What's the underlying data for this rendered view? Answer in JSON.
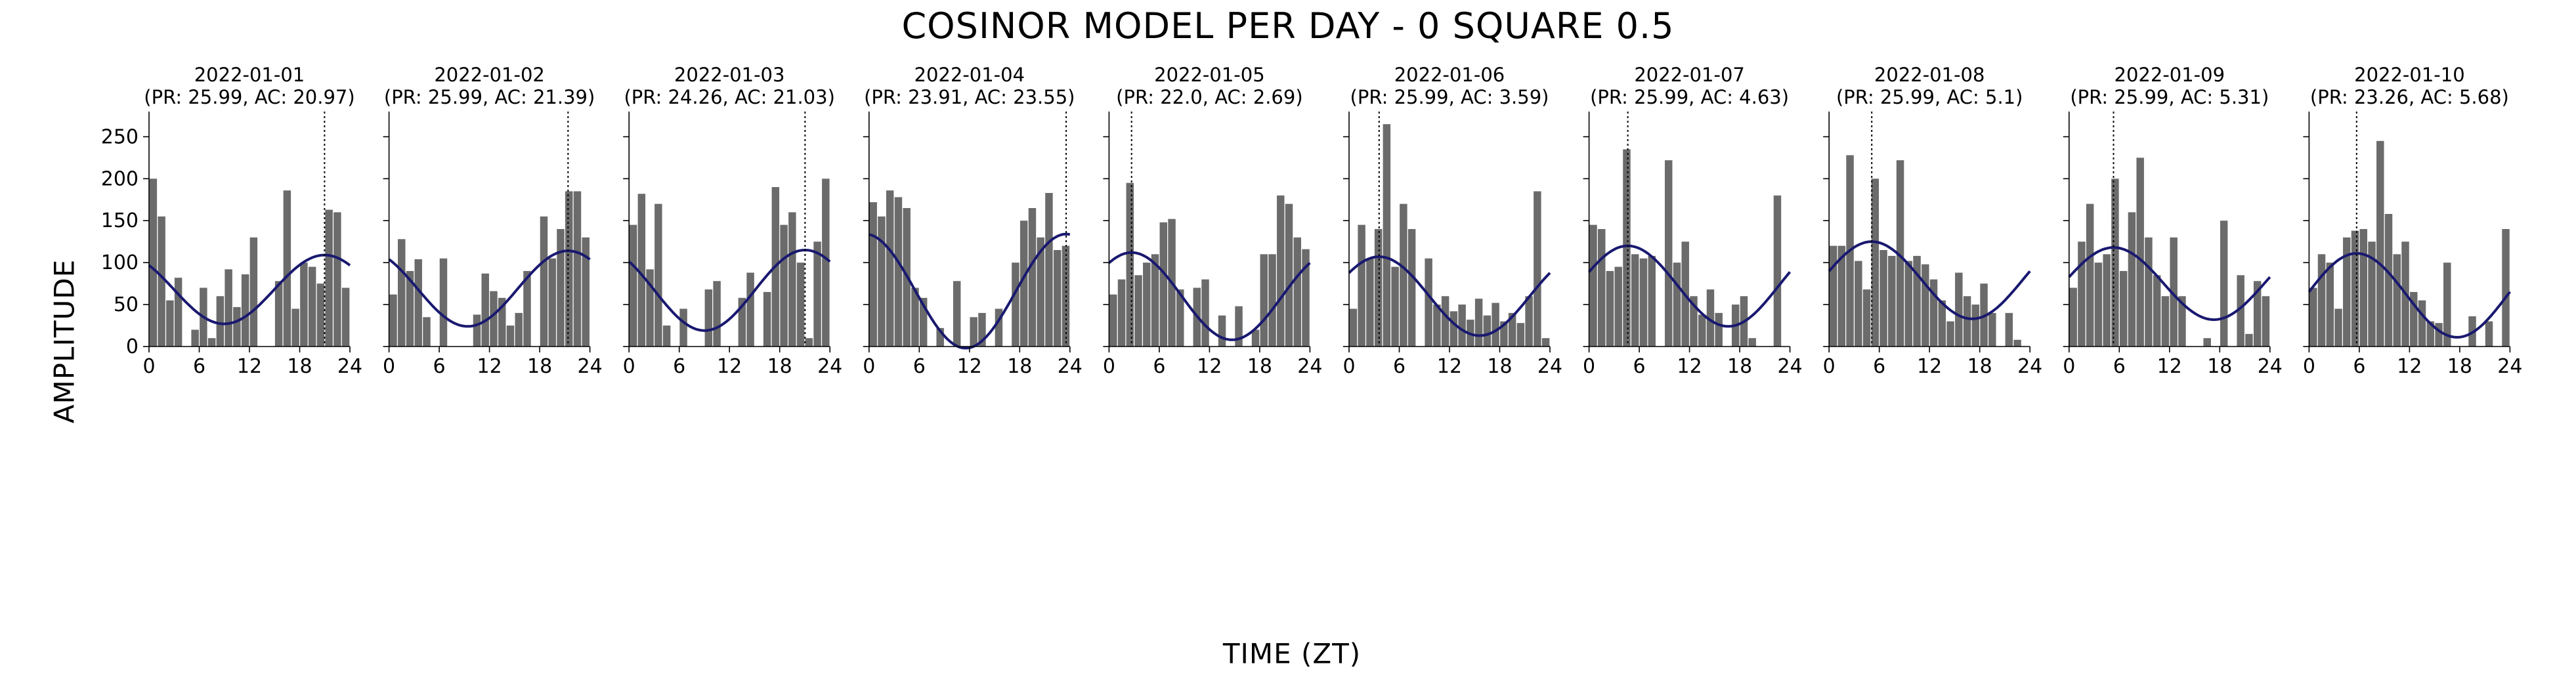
{
  "figure": {
    "title": "COSINOR MODEL PER DAY - 0 SQUARE 0.5",
    "xlabel": "TIME (ZT)",
    "ylabel": "AMPLITUDE"
  },
  "colors": {
    "bar": "#6b6b6b",
    "fit": "#191970",
    "acrophase_line": "#000000"
  },
  "chart_data": {
    "type": "bar",
    "xticks": [
      0,
      6,
      12,
      18,
      24
    ],
    "yticks": [
      0,
      50,
      100,
      150,
      200,
      250
    ],
    "xlim": [
      0,
      24
    ],
    "ylim": [
      0,
      280
    ],
    "bin_width_hours": 1,
    "panels": [
      {
        "date": "2022-01-01",
        "subtitle": "(PR: 25.99, AC: 20.97)",
        "acrophase": 20.97,
        "mesor": 68,
        "amplitude": 41,
        "values": [
          200,
          155,
          55,
          82,
          0,
          20,
          70,
          10,
          60,
          92,
          47,
          86,
          130,
          0,
          0,
          78,
          186,
          45,
          100,
          95,
          75,
          163,
          160,
          70
        ]
      },
      {
        "date": "2022-01-02",
        "subtitle": "(PR: 25.99, AC: 21.39)",
        "acrophase": 21.39,
        "mesor": 69,
        "amplitude": 45,
        "values": [
          62,
          128,
          90,
          104,
          35,
          0,
          105,
          0,
          0,
          0,
          38,
          87,
          66,
          58,
          25,
          40,
          90,
          0,
          155,
          105,
          140,
          185,
          185,
          130
        ]
      },
      {
        "date": "2022-01-03",
        "subtitle": "(PR: 24.26, AC: 21.03)",
        "acrophase": 21.03,
        "mesor": 67,
        "amplitude": 48,
        "values": [
          145,
          182,
          92,
          170,
          25,
          0,
          45,
          0,
          0,
          68,
          78,
          0,
          0,
          58,
          88,
          0,
          65,
          190,
          145,
          160,
          100,
          10,
          125,
          200
        ]
      },
      {
        "date": "2022-01-04",
        "subtitle": "(PR: 23.91, AC: 23.55)",
        "acrophase": 23.55,
        "mesor": 66,
        "amplitude": 68,
        "values": [
          172,
          155,
          186,
          178,
          165,
          70,
          58,
          0,
          22,
          0,
          78,
          0,
          35,
          40,
          0,
          45,
          0,
          100,
          150,
          165,
          130,
          183,
          115,
          120
        ]
      },
      {
        "date": "2022-01-05",
        "subtitle": "(PR: 22.0, AC: 2.69)",
        "acrophase": 2.69,
        "mesor": 60,
        "amplitude": 52,
        "values": [
          62,
          80,
          195,
          85,
          100,
          110,
          148,
          152,
          68,
          0,
          70,
          80,
          0,
          37,
          0,
          48,
          0,
          20,
          110,
          110,
          180,
          170,
          130,
          116
        ]
      },
      {
        "date": "2022-01-06",
        "subtitle": "(PR: 25.99, AC: 3.59)",
        "acrophase": 3.59,
        "mesor": 60,
        "amplitude": 47,
        "values": [
          45,
          145,
          105,
          140,
          265,
          95,
          170,
          140,
          0,
          105,
          50,
          60,
          42,
          50,
          32,
          57,
          37,
          52,
          30,
          40,
          28,
          60,
          185,
          10
        ]
      },
      {
        "date": "2022-01-07",
        "subtitle": "(PR: 25.99, AC: 4.63)",
        "acrophase": 4.63,
        "mesor": 72,
        "amplitude": 48,
        "values": [
          145,
          140,
          90,
          95,
          235,
          110,
          105,
          108,
          0,
          222,
          100,
          125,
          60,
          38,
          68,
          40,
          0,
          50,
          60,
          10,
          0,
          0,
          180,
          0
        ]
      },
      {
        "date": "2022-01-08",
        "subtitle": "(PR: 25.99, AC: 5.1)",
        "acrophase": 5.1,
        "mesor": 79,
        "amplitude": 46,
        "values": [
          120,
          120,
          228,
          102,
          68,
          200,
          115,
          108,
          222,
          102,
          108,
          98,
          80,
          55,
          30,
          88,
          60,
          50,
          75,
          40,
          0,
          40,
          8,
          0
        ]
      },
      {
        "date": "2022-01-09",
        "subtitle": "(PR: 25.99, AC: 5.31)",
        "acrophase": 5.31,
        "mesor": 75,
        "amplitude": 43,
        "values": [
          70,
          125,
          170,
          100,
          110,
          200,
          90,
          160,
          225,
          130,
          85,
          60,
          130,
          60,
          0,
          0,
          10,
          0,
          150,
          0,
          85,
          15,
          78,
          60
        ]
      },
      {
        "date": "2022-01-10",
        "subtitle": "(PR: 23.26, AC: 5.68)",
        "acrophase": 5.68,
        "mesor": 61,
        "amplitude": 50,
        "values": [
          70,
          110,
          100,
          45,
          130,
          138,
          140,
          125,
          245,
          158,
          110,
          125,
          65,
          55,
          30,
          28,
          100,
          0,
          0,
          36,
          0,
          30,
          0,
          140
        ]
      }
    ]
  }
}
